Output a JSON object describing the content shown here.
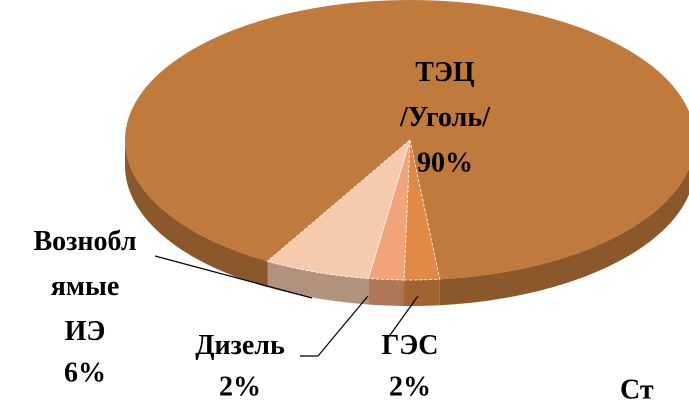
{
  "chart_data": {
    "type": "pie",
    "categories": [
      "ТЭЦ /Уголь/",
      "ГЭС",
      "Дизель",
      "Вознобл ямые ИЭ"
    ],
    "values": [
      90,
      2,
      2,
      6
    ],
    "value_labels": [
      "90%",
      "2%",
      "2%",
      "6%"
    ],
    "colors": [
      "#c07a3c",
      "#e08a45",
      "#f0a478",
      "#f6cbad"
    ],
    "caption": "Ст"
  }
}
